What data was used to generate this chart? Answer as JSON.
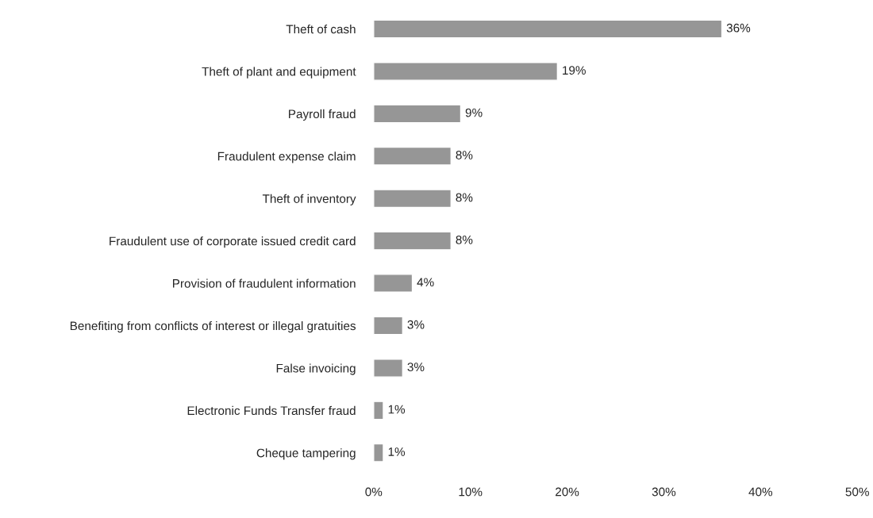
{
  "chart_data": {
    "type": "bar",
    "orientation": "horizontal",
    "categories": [
      "Theft of cash",
      "Theft of plant and equipment",
      "Payroll fraud",
      "Fraudulent expense claim",
      "Theft of inventory",
      "Fraudulent use of corporate issued credit card",
      "Provision of fraudulent information",
      "Benefiting from conflicts of interest or illegal gratuities",
      "False invoicing",
      "Electronic Funds Transfer fraud",
      "Cheque tampering"
    ],
    "values": [
      36,
      19,
      9,
      8,
      8,
      8,
      4,
      3,
      3,
      1,
      1
    ],
    "value_labels": [
      "36%",
      "19%",
      "9%",
      "8%",
      "8%",
      "8%",
      "4%",
      "3%",
      "3%",
      "1%",
      "1%"
    ],
    "color": "#969696",
    "xlim": [
      0,
      50
    ],
    "xticks": [
      {
        "value": 0,
        "label": "0%"
      },
      {
        "value": 10,
        "label": "10%"
      },
      {
        "value": 20,
        "label": "20%"
      },
      {
        "value": 30,
        "label": "30%"
      },
      {
        "value": 40,
        "label": "40%"
      },
      {
        "value": 50,
        "label": "50%"
      }
    ],
    "grid": false,
    "legend": false
  }
}
